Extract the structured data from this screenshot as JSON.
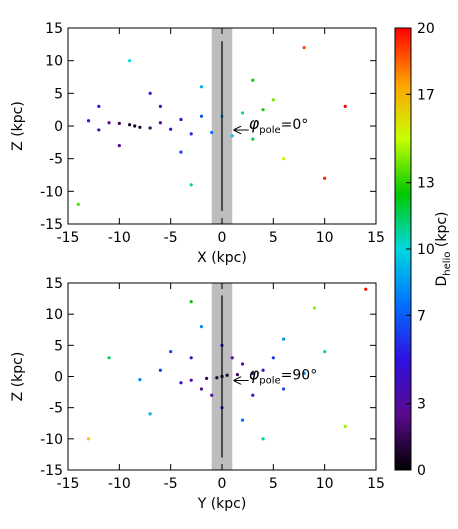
{
  "chart_data": [
    {
      "type": "scatter",
      "x": [
        -8.5,
        -9,
        -8,
        -10,
        -7,
        -11,
        -6,
        -12,
        -5,
        -13,
        -4,
        -3,
        -2,
        -1,
        0,
        1,
        2,
        3,
        4,
        -6,
        -10,
        -7,
        -4,
        -12,
        -2,
        3,
        -9,
        8,
        10,
        -14,
        6,
        -3,
        5,
        12
      ],
      "y": [
        0,
        0.2,
        -0.2,
        0.4,
        -0.3,
        0.5,
        0.5,
        -0.6,
        -0.5,
        0.8,
        1,
        -1.2,
        1.5,
        -1,
        1.5,
        -1.5,
        2,
        -2,
        2.5,
        3,
        -3,
        5,
        -4,
        3,
        6,
        7,
        10,
        12,
        -8,
        -12,
        -5,
        -9,
        4,
        3
      ],
      "c": [
        0.3,
        0.8,
        0.7,
        1.6,
        1.6,
        2.6,
        2.6,
        3.6,
        3.6,
        4.6,
        4.7,
        5.7,
        6.7,
        7.6,
        8.6,
        9.6,
        10.7,
        11.7,
        12.7,
        4,
        3.4,
        5.4,
        6.4,
        4.6,
        8.9,
        12.7,
        10,
        19,
        19.5,
        13.4,
        15.3,
        11,
        14,
        20
      ],
      "xlim": [
        -15,
        15
      ],
      "ylim": [
        -15,
        15
      ],
      "xticks": [
        -15,
        -10,
        -5,
        0,
        5,
        10,
        15
      ],
      "yticks": [
        -15,
        -10,
        -5,
        0,
        5,
        10,
        15
      ],
      "xlabel": "X (kpc)",
      "ylabel": "Z (kpc)",
      "shade": [
        -1,
        1
      ],
      "vline": {
        "x": 0,
        "y": [
          -13,
          13
        ]
      },
      "annotation": {
        "symbol": "φ",
        "sub": "pole",
        "text": "=0°"
      }
    },
    {
      "type": "scatter",
      "x": [
        0,
        0.5,
        -0.5,
        1.5,
        -1.5,
        3,
        -3,
        2,
        -2,
        1,
        -1,
        3,
        -3,
        4,
        -4,
        0,
        0,
        5,
        -5,
        6,
        -6,
        2,
        -2,
        8,
        -8,
        6,
        -7,
        10,
        -11,
        4,
        -3,
        12,
        -13,
        9,
        14
      ],
      "y": [
        0,
        0.2,
        -0.2,
        0.3,
        -0.3,
        0.5,
        -0.6,
        2,
        -2,
        3,
        -3,
        -3,
        3,
        1,
        -1,
        5,
        -5,
        3,
        4,
        -2,
        1,
        -7,
        8,
        0.5,
        -0.5,
        6,
        -6,
        4,
        3,
        -10,
        12,
        -8,
        -10,
        11,
        14
      ],
      "c": [
        0.3,
        0.8,
        0.8,
        1.6,
        1.6,
        3,
        3,
        2.8,
        2.8,
        3.2,
        3.2,
        4.3,
        4.3,
        4.2,
        4.2,
        5,
        5,
        5.9,
        6.5,
        6.4,
        6.2,
        7.3,
        8.2,
        8,
        8.1,
        8.5,
        9.2,
        10.8,
        11.4,
        10.8,
        12.4,
        14.4,
        16.4,
        14.2,
        19.8
      ],
      "xlim": [
        -15,
        15
      ],
      "ylim": [
        -15,
        15
      ],
      "xticks": [
        -15,
        -10,
        -5,
        0,
        5,
        10,
        15
      ],
      "yticks": [
        -15,
        -10,
        -5,
        0,
        5,
        10,
        15
      ],
      "xlabel": "Y (kpc)",
      "ylabel": "Z (kpc)",
      "shade": [
        -1,
        1
      ],
      "vline": {
        "x": 0,
        "y": [
          -13,
          13
        ]
      },
      "annotation": {
        "symbol": "φ",
        "sub": "pole",
        "text": "=90°"
      }
    },
    {
      "type": "colorbar",
      "clim": [
        0,
        20
      ],
      "cticks": [
        0,
        3,
        7,
        10,
        13,
        17,
        20
      ],
      "label": {
        "main": "D",
        "sub": "helio",
        "unit": " (kpc)"
      },
      "colormap": [
        "#000000",
        "#5a0a8c",
        "#3010e0",
        "#0070ff",
        "#00d8e0",
        "#00c800",
        "#c8ff00",
        "#ffa000",
        "#ff0000"
      ]
    }
  ]
}
